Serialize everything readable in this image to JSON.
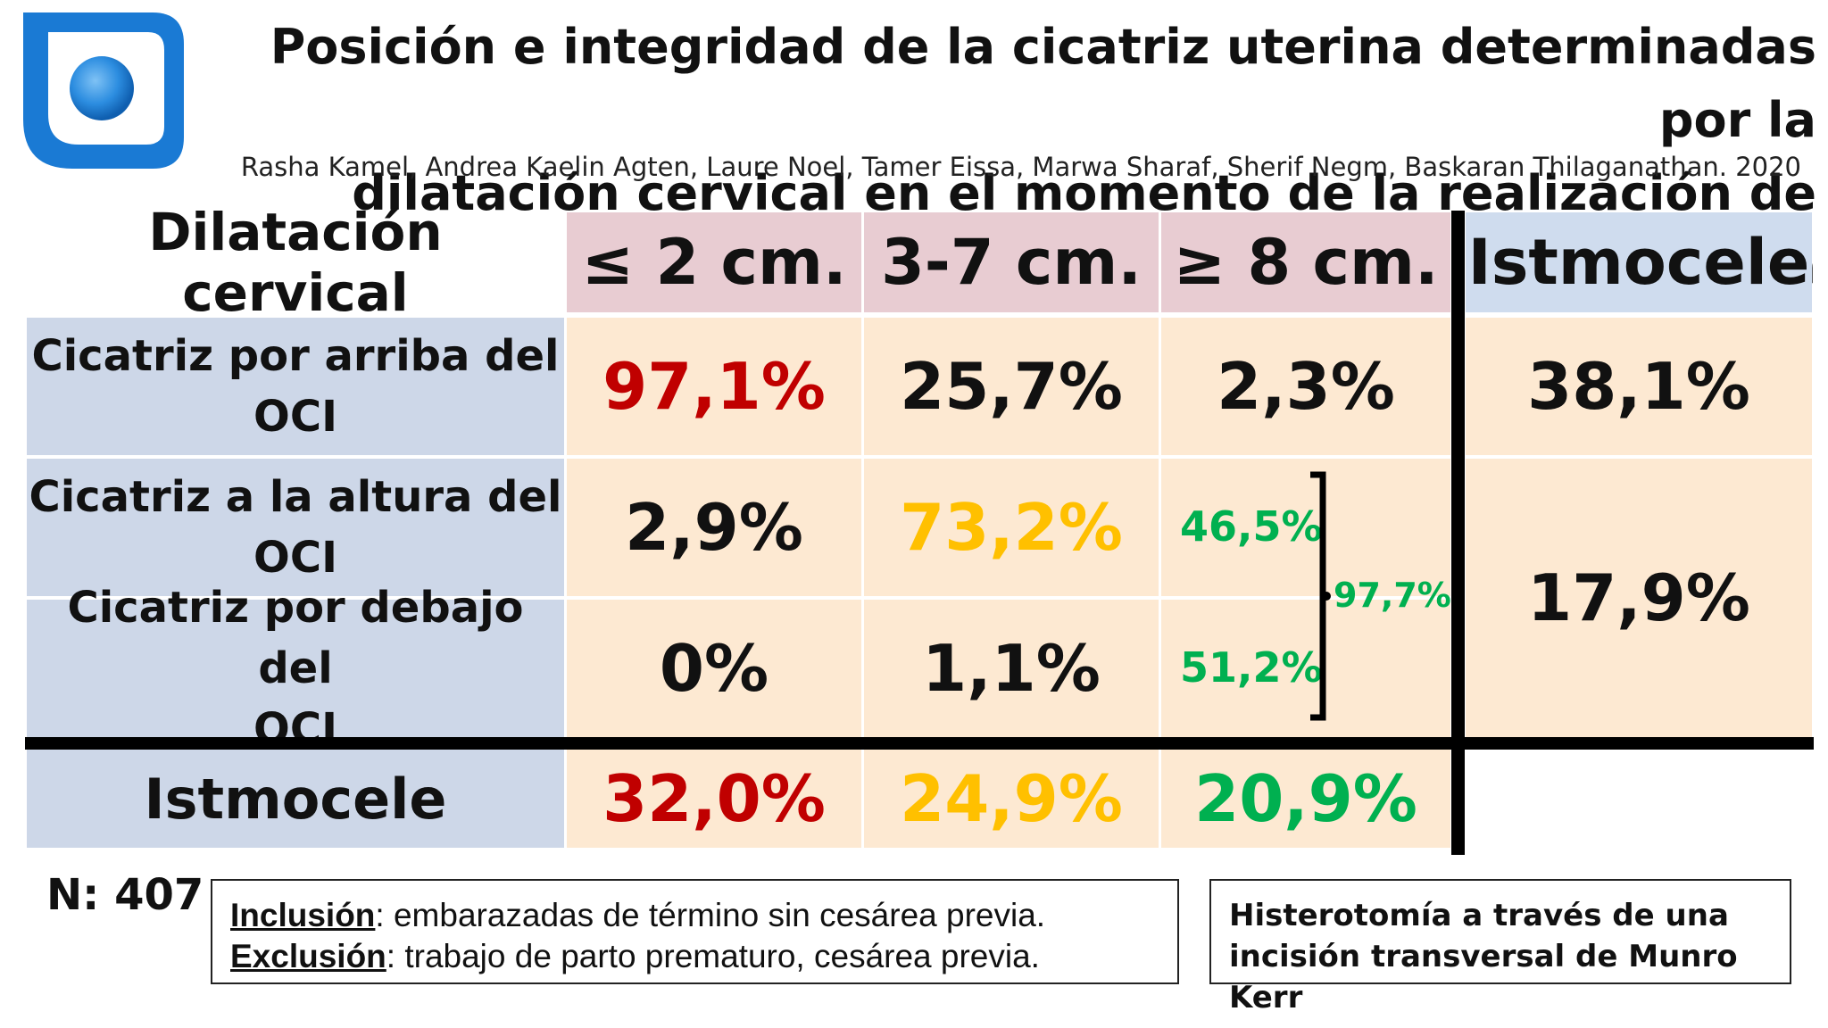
{
  "title_line1": "Posición e integridad de la cicatriz uterina determinadas  por la",
  "title_line2": "dilatación cervical en el momento de la realización de cesárea",
  "authors": "Rasha Kamel, Andrea Kaelin Agten, Laure Noel, Tamer Eissa, Marwa Sharaf, Sherif Negm, Baskaran Thilaganathan. 2020",
  "table": {
    "header_label": "Dilatación cervical",
    "columns": [
      "≤ 2 cm.",
      "3-7 cm.",
      "≥ 8 cm.",
      "Istmocele"
    ],
    "rows": [
      {
        "label_line1": "Cicatriz por arriba del",
        "label_line2": "OCI",
        "values": [
          "97,1%",
          "25,7%",
          "2,3%",
          "38,1%"
        ]
      },
      {
        "label_line1": "Cicatriz a la altura del",
        "label_line2": "OCI",
        "values": [
          "2,9%",
          "73,2%",
          "46,5%"
        ]
      },
      {
        "label_line1": "Cicatriz por debajo del",
        "label_line2": "OCI",
        "values": [
          "0%",
          "1,1%",
          "51,2%"
        ]
      }
    ],
    "merged_istmocele": "17,9%",
    "bracket_total": "97,7%",
    "footer_label": "Istmocele",
    "footer_values": [
      "32,0%",
      "24,9%",
      "20,9%"
    ]
  },
  "n_label": "N: 407",
  "inclusion": {
    "label": "Inclusión",
    "text": ": embarazadas de término sin cesárea previa."
  },
  "exclusion": {
    "label": "Exclusión",
    "text": ": trabajo de parto prematuro, cesárea previa."
  },
  "note_line1": "Histerotomía a través de una",
  "note_line2": "incisión transversal de Munro Kerr",
  "colors": {
    "red": "#c00000",
    "yellow": "#ffc000",
    "green": "#00b050",
    "logo_blue": "#1a7ad4"
  }
}
